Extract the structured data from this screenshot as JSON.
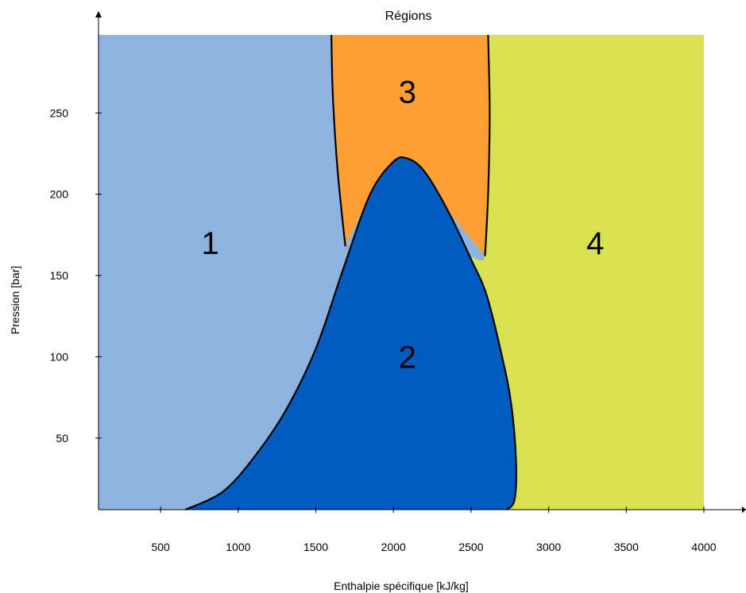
{
  "chart_data": {
    "type": "area",
    "title": "Régions",
    "xlabel": "Enthalpie spécifique [kJ/kg]",
    "ylabel": "Pression [bar]",
    "xlim": [
      100,
      4000
    ],
    "ylim": [
      6,
      298
    ],
    "xticks": [
      500,
      1000,
      1500,
      2000,
      2500,
      3000,
      3500,
      4000
    ],
    "yticks": [
      50,
      100,
      150,
      200,
      250
    ],
    "grid": false,
    "regions": [
      {
        "label": "1",
        "color": "#8cb4de",
        "label_x": 820,
        "label_y": 170
      },
      {
        "label": "2",
        "color": "#005cbf",
        "label_x": 2090,
        "label_y": 100
      },
      {
        "label": "3",
        "color": "#ff9f33",
        "label_x": 2090,
        "label_y": 263
      },
      {
        "label": "4",
        "color": "#d8e250",
        "label_x": 3300,
        "label_y": 170
      }
    ],
    "boundary_2_saturation": {
      "x": [
        660,
        900,
        1100,
        1300,
        1500,
        1680,
        1850,
        2000,
        2090,
        2200,
        2350,
        2500,
        2600,
        2700,
        2760,
        2790,
        2780,
        2730
      ],
      "y": [
        6,
        17,
        38,
        66,
        105,
        155,
        200,
        220,
        222,
        214,
        190,
        160,
        138,
        100,
        70,
        35,
        12,
        6
      ]
    },
    "boundary_3_left": {
      "x": [
        1600,
        1610,
        1640,
        1690
      ],
      "y": [
        298,
        260,
        215,
        168
      ]
    },
    "boundary_3_right": {
      "x": [
        2610,
        2620,
        2610,
        2590
      ],
      "y": [
        298,
        250,
        200,
        162
      ]
    }
  }
}
